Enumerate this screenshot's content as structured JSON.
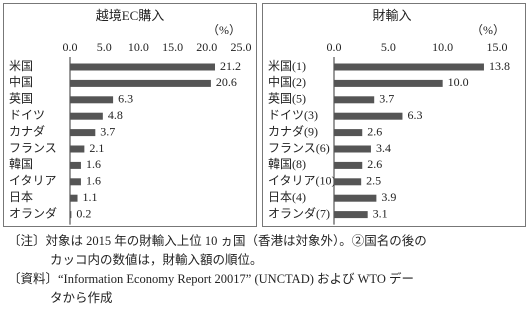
{
  "chart_data": [
    {
      "type": "bar",
      "orientation": "horizontal",
      "title": "越境EC購入",
      "unit_label": "（%）",
      "categories": [
        "米国",
        "中国",
        "英国",
        "ドイツ",
        "カナダ",
        "フランス",
        "韓国",
        "イタリア",
        "日本",
        "オランダ"
      ],
      "values": [
        21.2,
        20.6,
        6.3,
        4.8,
        3.7,
        2.1,
        1.6,
        1.6,
        1.1,
        0.2
      ],
      "color": "#555555",
      "xlim": [
        0,
        25
      ],
      "xticks": [
        {
          "value": 0,
          "label": "0.0"
        },
        {
          "value": 5,
          "label": "5.0"
        },
        {
          "value": 10,
          "label": "10.0"
        },
        {
          "value": 15,
          "label": "15.0"
        },
        {
          "value": 20,
          "label": "20.0"
        },
        {
          "value": 25,
          "label": "25.0"
        }
      ]
    },
    {
      "type": "bar",
      "orientation": "horizontal",
      "title": "財輸入",
      "unit_label": "（%）",
      "categories": [
        "米国(1)",
        "中国(2)",
        "英国(5)",
        "ドイツ(3)",
        "カナダ(9)",
        "フランス(6)",
        "韓国(8)",
        "イタリア(10)",
        "日本(4)",
        "オランダ(7)"
      ],
      "values": [
        13.8,
        10.0,
        3.7,
        6.3,
        2.6,
        3.4,
        2.6,
        2.5,
        3.9,
        3.1
      ],
      "value_labels": [
        "13.8",
        "10.0",
        "3.7",
        "6.3",
        "2.6",
        "3.4",
        "2.6",
        "2.5",
        "3.9",
        "3.1"
      ],
      "color": "#555555",
      "xlim": [
        0,
        15
      ],
      "xticks": [
        {
          "value": 0,
          "label": "0.0"
        },
        {
          "value": 5,
          "label": "5.0"
        },
        {
          "value": 10,
          "label": "10.0"
        },
        {
          "value": 15,
          "label": "15.0"
        }
      ]
    }
  ],
  "notes": [
    "〔注〕対象は 2015 年の財輸入上位 10 ヵ国（香港は対象外）。②国名の後の",
    "カッコ内の数値は，財輸入額の順位。",
    "〔資料〕“Information Economy Report 20017” (UNCTAD) および WTO デー",
    "タから作成"
  ]
}
